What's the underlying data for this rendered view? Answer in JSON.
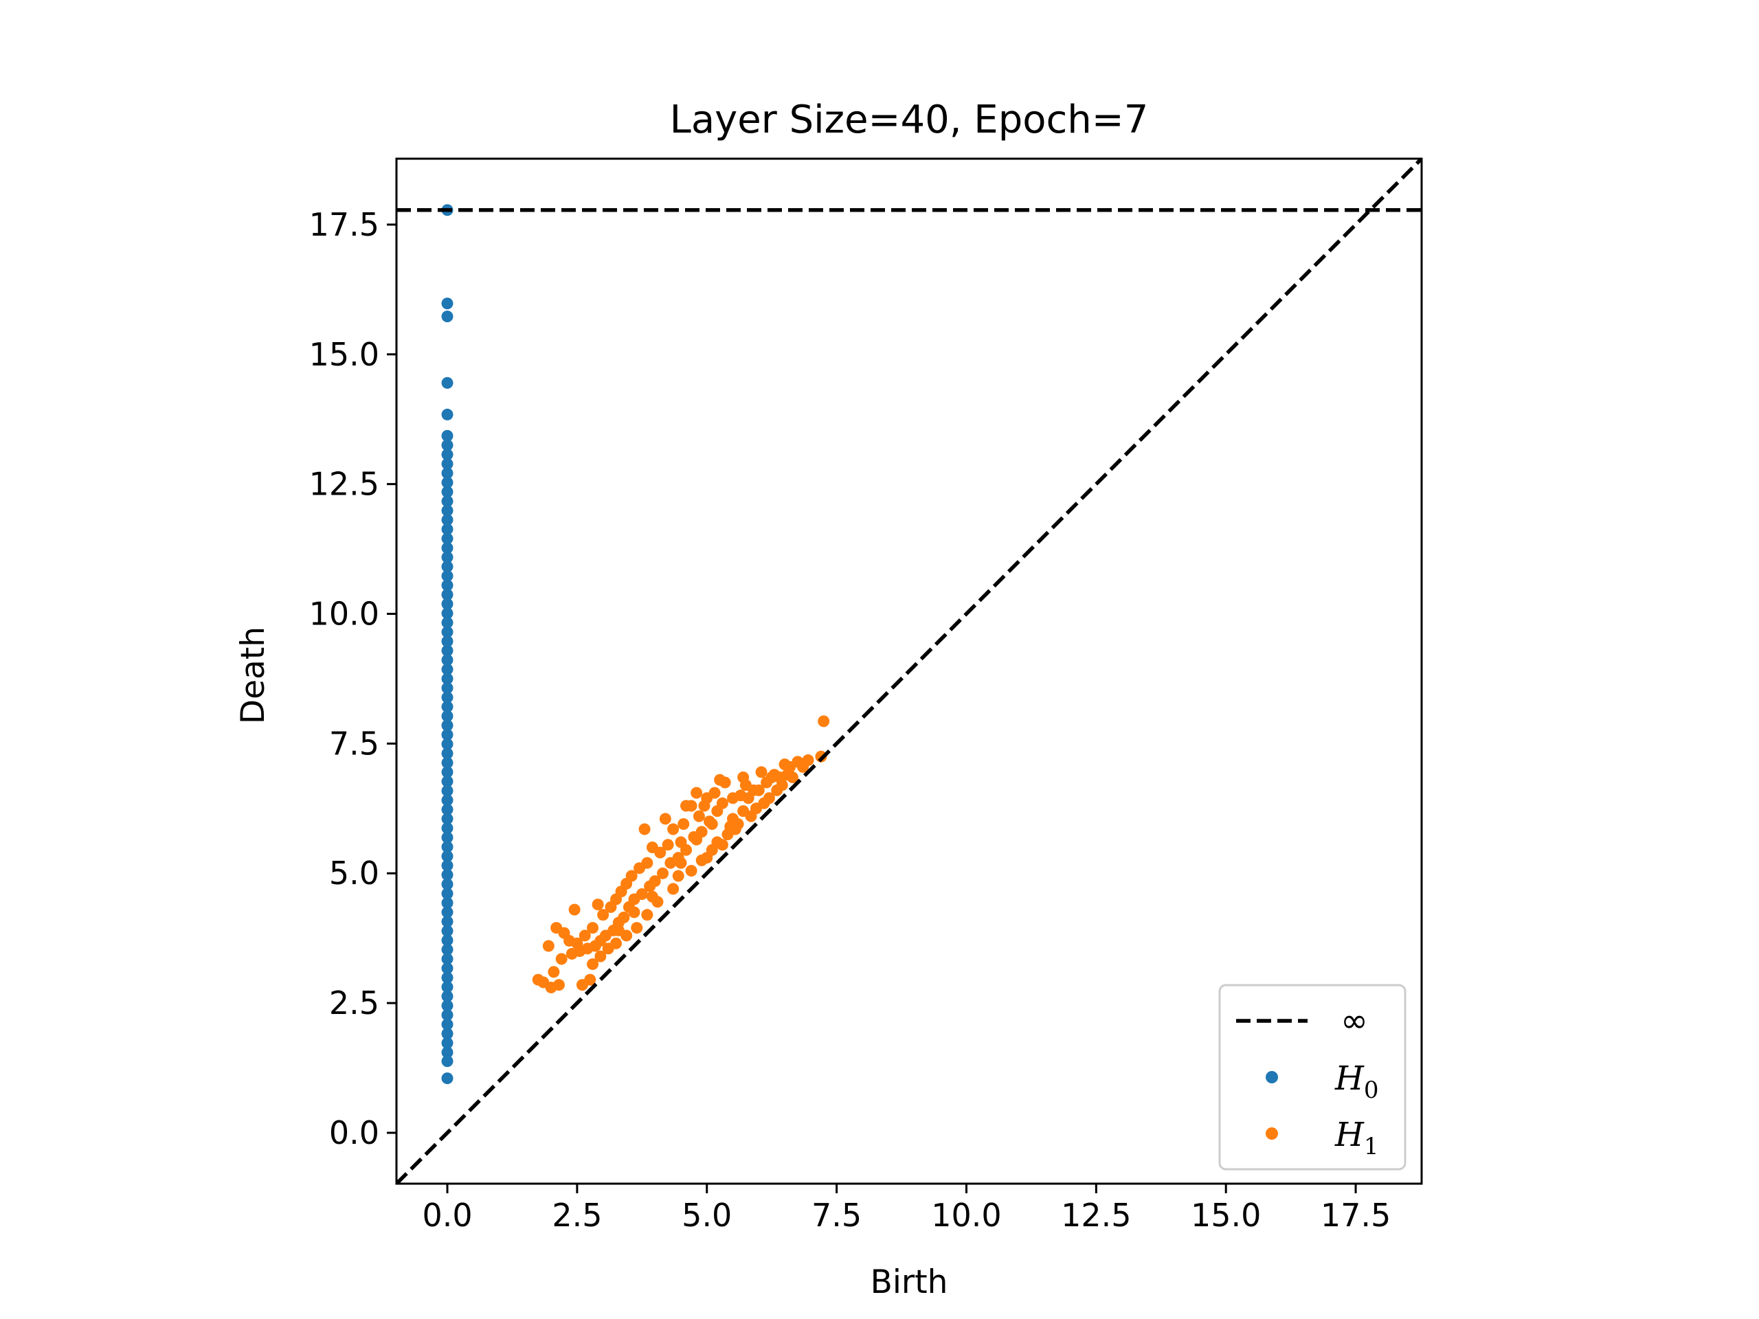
{
  "chart_data": {
    "type": "scatter",
    "title": "Layer Size=40, Epoch=7",
    "xlabel": "Birth",
    "ylabel": "Death",
    "xlim": [
      -0.98,
      18.77
    ],
    "ylim": [
      -0.98,
      18.77
    ],
    "xticks": [
      0.0,
      2.5,
      5.0,
      7.5,
      10.0,
      12.5,
      15.0,
      17.5
    ],
    "yticks": [
      0.0,
      2.5,
      5.0,
      7.5,
      10.0,
      12.5,
      15.0,
      17.5
    ],
    "xtick_labels": [
      "0.0",
      "2.5",
      "5.0",
      "7.5",
      "10.0",
      "12.5",
      "15.0",
      "17.5"
    ],
    "ytick_labels": [
      "0.0",
      "2.5",
      "5.0",
      "7.5",
      "10.0",
      "12.5",
      "15.0",
      "17.5"
    ],
    "grid": false,
    "legend_position": "bottom-right",
    "infinity_line": {
      "label": "∞",
      "y": 17.78,
      "color": "#000000",
      "style": "dashed"
    },
    "diagonal": {
      "color": "#000000",
      "style": "dashed"
    },
    "series": [
      {
        "name": "H",
        "subscript": "0",
        "color": "#1f77b4",
        "points": [
          [
            0.0,
            17.78
          ],
          [
            0.0,
            15.98
          ],
          [
            0.0,
            15.73
          ],
          [
            0.0,
            14.45
          ],
          [
            0.0,
            13.84
          ],
          [
            0.0,
            13.43
          ],
          [
            0.0,
            13.25
          ],
          [
            0.0,
            13.07
          ],
          [
            0.0,
            12.89
          ],
          [
            0.0,
            12.71
          ],
          [
            0.0,
            12.53
          ],
          [
            0.0,
            12.35
          ],
          [
            0.0,
            12.17
          ],
          [
            0.0,
            11.99
          ],
          [
            0.0,
            11.81
          ],
          [
            0.0,
            11.63
          ],
          [
            0.0,
            11.45
          ],
          [
            0.0,
            11.27
          ],
          [
            0.0,
            11.09
          ],
          [
            0.0,
            10.91
          ],
          [
            0.0,
            10.73
          ],
          [
            0.0,
            10.55
          ],
          [
            0.0,
            10.37
          ],
          [
            0.0,
            10.19
          ],
          [
            0.0,
            10.01
          ],
          [
            0.0,
            9.83
          ],
          [
            0.0,
            9.65
          ],
          [
            0.0,
            9.47
          ],
          [
            0.0,
            9.29
          ],
          [
            0.0,
            9.11
          ],
          [
            0.0,
            8.93
          ],
          [
            0.0,
            8.75
          ],
          [
            0.0,
            8.57
          ],
          [
            0.0,
            8.39
          ],
          [
            0.0,
            8.21
          ],
          [
            0.0,
            8.03
          ],
          [
            0.0,
            7.85
          ],
          [
            0.0,
            7.67
          ],
          [
            0.0,
            7.49
          ],
          [
            0.0,
            7.31
          ],
          [
            0.0,
            7.13
          ],
          [
            0.0,
            6.95
          ],
          [
            0.0,
            6.77
          ],
          [
            0.0,
            6.59
          ],
          [
            0.0,
            6.41
          ],
          [
            0.0,
            6.23
          ],
          [
            0.0,
            6.05
          ],
          [
            0.0,
            5.87
          ],
          [
            0.0,
            5.69
          ],
          [
            0.0,
            5.51
          ],
          [
            0.0,
            5.33
          ],
          [
            0.0,
            5.15
          ],
          [
            0.0,
            4.97
          ],
          [
            0.0,
            4.79
          ],
          [
            0.0,
            4.61
          ],
          [
            0.0,
            4.43
          ],
          [
            0.0,
            4.25
          ],
          [
            0.0,
            4.07
          ],
          [
            0.0,
            3.89
          ],
          [
            0.0,
            3.71
          ],
          [
            0.0,
            3.53
          ],
          [
            0.0,
            3.35
          ],
          [
            0.0,
            3.17
          ],
          [
            0.0,
            2.99
          ],
          [
            0.0,
            2.81
          ],
          [
            0.0,
            2.63
          ],
          [
            0.0,
            2.45
          ],
          [
            0.0,
            2.27
          ],
          [
            0.0,
            2.09
          ],
          [
            0.0,
            1.91
          ],
          [
            0.0,
            1.73
          ],
          [
            0.0,
            1.55
          ],
          [
            0.0,
            1.38
          ],
          [
            0.0,
            1.05
          ]
        ]
      },
      {
        "name": "H",
        "subscript": "1",
        "color": "#ff7f0e",
        "points": [
          [
            7.25,
            7.93
          ],
          [
            7.2,
            7.25
          ],
          [
            6.95,
            7.18
          ],
          [
            6.75,
            7.15
          ],
          [
            6.6,
            7.05
          ],
          [
            6.5,
            7.1
          ],
          [
            6.4,
            6.85
          ],
          [
            6.3,
            6.9
          ],
          [
            6.15,
            6.75
          ],
          [
            6.05,
            6.95
          ],
          [
            5.9,
            6.6
          ],
          [
            5.7,
            6.85
          ],
          [
            5.65,
            6.5
          ],
          [
            5.5,
            6.45
          ],
          [
            5.35,
            6.75
          ],
          [
            5.3,
            6.35
          ],
          [
            5.2,
            6.2
          ],
          [
            5.15,
            6.55
          ],
          [
            5.05,
            6.0
          ],
          [
            4.95,
            6.3
          ],
          [
            4.9,
            5.8
          ],
          [
            4.85,
            6.1
          ],
          [
            4.75,
            5.7
          ],
          [
            4.7,
            6.3
          ],
          [
            4.6,
            5.45
          ],
          [
            4.55,
            5.95
          ],
          [
            4.5,
            5.6
          ],
          [
            4.45,
            5.3
          ],
          [
            4.35,
            5.85
          ],
          [
            4.3,
            5.2
          ],
          [
            4.25,
            5.55
          ],
          [
            4.15,
            5.0
          ],
          [
            4.1,
            5.4
          ],
          [
            4.0,
            4.85
          ],
          [
            3.95,
            5.5
          ],
          [
            3.9,
            4.75
          ],
          [
            3.85,
            5.2
          ],
          [
            3.75,
            4.6
          ],
          [
            3.7,
            5.1
          ],
          [
            3.6,
            4.5
          ],
          [
            3.55,
            4.95
          ],
          [
            3.5,
            4.35
          ],
          [
            3.45,
            4.8
          ],
          [
            3.4,
            4.15
          ],
          [
            3.35,
            4.65
          ],
          [
            3.3,
            4.05
          ],
          [
            3.25,
            4.5
          ],
          [
            3.2,
            3.9
          ],
          [
            3.15,
            4.35
          ],
          [
            3.05,
            3.8
          ],
          [
            3.0,
            4.2
          ],
          [
            2.95,
            3.7
          ],
          [
            2.9,
            4.4
          ],
          [
            2.85,
            3.6
          ],
          [
            2.8,
            3.95
          ],
          [
            2.7,
            3.55
          ],
          [
            2.65,
            3.8
          ],
          [
            2.55,
            3.5
          ],
          [
            2.5,
            3.65
          ],
          [
            2.45,
            4.3
          ],
          [
            2.4,
            3.45
          ],
          [
            2.35,
            3.7
          ],
          [
            2.25,
            3.85
          ],
          [
            2.2,
            3.35
          ],
          [
            2.1,
            3.95
          ],
          [
            2.05,
            3.1
          ],
          [
            1.95,
            3.6
          ],
          [
            1.85,
            2.9
          ],
          [
            1.75,
            2.95
          ],
          [
            2.15,
            2.85
          ],
          [
            2.0,
            2.8
          ],
          [
            2.6,
            2.85
          ],
          [
            2.75,
            2.95
          ],
          [
            3.8,
            5.85
          ],
          [
            4.2,
            6.05
          ],
          [
            4.6,
            6.3
          ],
          [
            4.8,
            6.55
          ],
          [
            5.0,
            6.45
          ],
          [
            5.25,
            6.8
          ],
          [
            5.5,
            6.05
          ],
          [
            5.75,
            6.7
          ],
          [
            5.95,
            6.25
          ],
          [
            6.2,
            6.45
          ],
          [
            6.45,
            6.7
          ],
          [
            4.45,
            4.95
          ],
          [
            4.9,
            5.25
          ],
          [
            5.1,
            5.45
          ],
          [
            5.4,
            5.75
          ],
          [
            5.6,
            5.95
          ],
          [
            5.85,
            6.1
          ],
          [
            6.1,
            6.35
          ],
          [
            6.35,
            6.6
          ],
          [
            4.05,
            4.45
          ],
          [
            3.85,
            4.2
          ],
          [
            3.65,
            3.95
          ],
          [
            3.45,
            3.8
          ],
          [
            3.25,
            3.65
          ],
          [
            3.1,
            3.55
          ],
          [
            2.95,
            3.4
          ],
          [
            2.8,
            3.25
          ],
          [
            5.2,
            5.6
          ],
          [
            5.45,
            5.9
          ],
          [
            5.7,
            6.2
          ],
          [
            4.7,
            5.05
          ],
          [
            4.35,
            4.7
          ],
          [
            5.0,
            5.3
          ],
          [
            5.3,
            5.55
          ],
          [
            5.55,
            5.85
          ],
          [
            4.5,
            5.2
          ],
          [
            4.8,
            5.65
          ],
          [
            5.1,
            5.95
          ],
          [
            3.95,
            4.55
          ],
          [
            3.6,
            4.25
          ],
          [
            3.3,
            3.9
          ],
          [
            5.8,
            6.45
          ],
          [
            6.0,
            6.6
          ],
          [
            6.25,
            6.85
          ],
          [
            6.55,
            6.9
          ],
          [
            6.65,
            6.85
          ],
          [
            6.85,
            7.05
          ]
        ]
      }
    ]
  }
}
